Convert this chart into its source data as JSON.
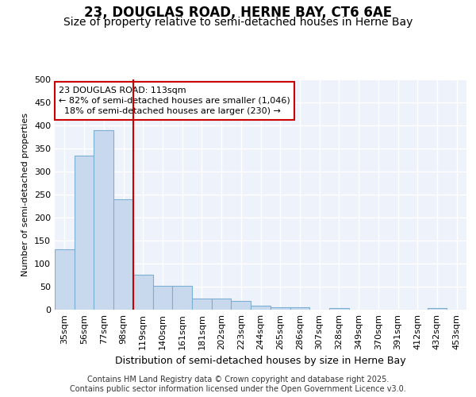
{
  "title1": "23, DOUGLAS ROAD, HERNE BAY, CT6 6AE",
  "title2": "Size of property relative to semi-detached houses in Herne Bay",
  "xlabel": "Distribution of semi-detached houses by size in Herne Bay",
  "ylabel": "Number of semi-detached properties",
  "categories": [
    "35sqm",
    "56sqm",
    "77sqm",
    "98sqm",
    "119sqm",
    "140sqm",
    "161sqm",
    "181sqm",
    "202sqm",
    "223sqm",
    "244sqm",
    "265sqm",
    "286sqm",
    "307sqm",
    "328sqm",
    "349sqm",
    "370sqm",
    "391sqm",
    "412sqm",
    "432sqm",
    "453sqm"
  ],
  "values": [
    131,
    335,
    390,
    240,
    76,
    51,
    51,
    25,
    25,
    19,
    8,
    5,
    5,
    0,
    4,
    0,
    0,
    0,
    0,
    4,
    0
  ],
  "bar_color": "#c9d9ed",
  "bar_edge_color": "#7bafd4",
  "vline_color": "#cc0000",
  "annotation_line1": "23 DOUGLAS ROAD: 113sqm",
  "annotation_line2": "← 82% of semi-detached houses are smaller (1,046)",
  "annotation_line3": "  18% of semi-detached houses are larger (230) →",
  "annotation_box_color": "#ffffff",
  "annotation_box_edge": "#cc0000",
  "footer": "Contains HM Land Registry data © Crown copyright and database right 2025.\nContains public sector information licensed under the Open Government Licence v3.0.",
  "ylim": [
    0,
    500
  ],
  "yticks": [
    0,
    50,
    100,
    150,
    200,
    250,
    300,
    350,
    400,
    450,
    500
  ],
  "background_color": "#eef2fb",
  "grid_color": "#ffffff",
  "title1_fontsize": 12,
  "title2_fontsize": 10,
  "xlabel_fontsize": 9,
  "ylabel_fontsize": 8,
  "tick_fontsize": 8,
  "annotation_fontsize": 8,
  "footer_fontsize": 7
}
